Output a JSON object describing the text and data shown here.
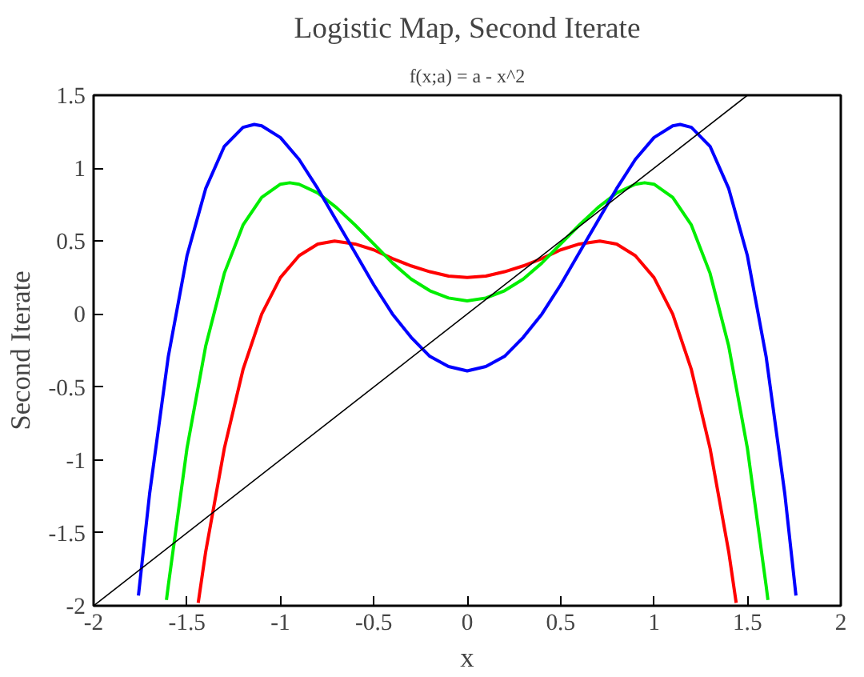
{
  "chart_data": {
    "type": "line",
    "title": "Logistic Map, Second Iterate",
    "subtitle": "f(x;a) = a - x^2",
    "xlabel": "x",
    "ylabel": "Second Iterate",
    "xlim": [
      -2,
      2
    ],
    "ylim": [
      -2,
      1.5
    ],
    "xticks": [
      -2,
      -1.5,
      -1,
      -0.5,
      0,
      0.5,
      1,
      1.5,
      2
    ],
    "yticks": [
      -2,
      -1.5,
      -1,
      -0.5,
      0,
      0.5,
      1,
      1.5
    ],
    "grid": false,
    "marker": "none",
    "line_style": "solid",
    "series": [
      {
        "color": "#ff0000",
        "x": [
          -1.44,
          -1.4,
          -1.3,
          -1.2,
          -1.1,
          -1.0,
          -0.9,
          -0.8,
          -0.71,
          -0.6,
          -0.5,
          -0.4,
          -0.3,
          -0.2,
          -0.1,
          0,
          0.1,
          0.2,
          0.3,
          0.4,
          0.5,
          0.6,
          0.71,
          0.8,
          0.9,
          1.0,
          1.1,
          1.2,
          1.3,
          1.4,
          1.44
        ],
        "values": [
          -1.98,
          -1.63,
          -0.92,
          -0.38,
          0,
          0.25,
          0.4,
          0.48,
          0.5,
          0.48,
          0.44,
          0.38,
          0.33,
          0.29,
          0.26,
          0.25,
          0.26,
          0.29,
          0.33,
          0.38,
          0.44,
          0.48,
          0.5,
          0.48,
          0.4,
          0.25,
          0,
          -0.38,
          -0.92,
          -1.63,
          -1.98
        ]
      },
      {
        "color": "#00ee00",
        "x": [
          -1.61,
          -1.6,
          -1.5,
          -1.4,
          -1.3,
          -1.2,
          -1.1,
          -1.0,
          -0.95,
          -0.9,
          -0.8,
          -0.7,
          -0.6,
          -0.5,
          -0.4,
          -0.3,
          -0.2,
          -0.1,
          0,
          0.1,
          0.2,
          0.3,
          0.4,
          0.5,
          0.6,
          0.7,
          0.8,
          0.9,
          0.95,
          1.0,
          1.1,
          1.2,
          1.3,
          1.4,
          1.5,
          1.6,
          1.61
        ],
        "values": [
          -1.96,
          -1.86,
          -0.92,
          -0.22,
          0.28,
          0.61,
          0.8,
          0.89,
          0.9,
          0.89,
          0.83,
          0.73,
          0.61,
          0.48,
          0.35,
          0.24,
          0.16,
          0.11,
          0.09,
          0.11,
          0.16,
          0.24,
          0.35,
          0.48,
          0.61,
          0.73,
          0.83,
          0.89,
          0.9,
          0.89,
          0.8,
          0.61,
          0.28,
          -0.22,
          -0.92,
          -1.86,
          -1.96
        ]
      },
      {
        "color": "#0000ff",
        "x": [
          -1.76,
          -1.7,
          -1.6,
          -1.5,
          -1.4,
          -1.3,
          -1.2,
          -1.14,
          -1.1,
          -1.0,
          -0.9,
          -0.8,
          -0.7,
          -0.6,
          -0.5,
          -0.4,
          -0.3,
          -0.2,
          -0.1,
          0,
          0.1,
          0.2,
          0.3,
          0.4,
          0.5,
          0.6,
          0.7,
          0.8,
          0.9,
          1.0,
          1.1,
          1.14,
          1.2,
          1.3,
          1.4,
          1.5,
          1.6,
          1.7,
          1.76
        ],
        "values": [
          -1.93,
          -1.23,
          -0.29,
          0.4,
          0.86,
          1.15,
          1.28,
          1.3,
          1.29,
          1.21,
          1.06,
          0.86,
          0.64,
          0.42,
          0.2,
          0,
          -0.16,
          -0.29,
          -0.36,
          -0.39,
          -0.36,
          -0.29,
          -0.16,
          0,
          0.2,
          0.42,
          0.64,
          0.86,
          1.06,
          1.21,
          1.29,
          1.3,
          1.28,
          1.15,
          0.86,
          0.4,
          -0.29,
          -1.23,
          -1.93
        ]
      },
      {
        "color": "#000000",
        "x": [
          -2,
          1.5
        ],
        "values": [
          -2,
          1.5
        ]
      }
    ]
  }
}
